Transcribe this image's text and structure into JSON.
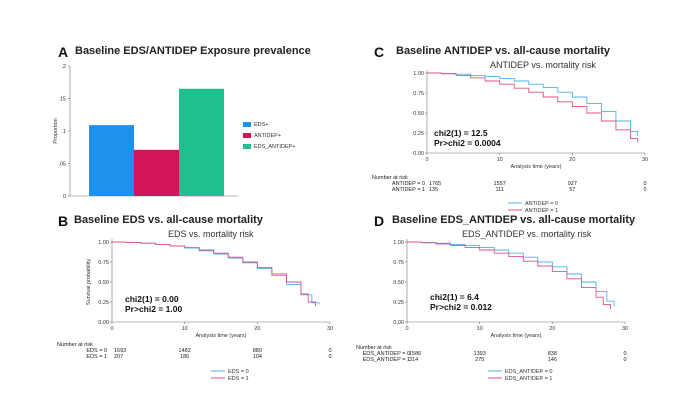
{
  "panels": {
    "A": {
      "letter": "A",
      "title": "Baseline EDS/ANTIDEP Exposure prevalence"
    },
    "B": {
      "letter": "B",
      "title": "Baseline EDS vs. all-cause mortality"
    },
    "C": {
      "letter": "C",
      "title": "Baseline ANTIDEP vs. all-cause mortality"
    },
    "D": {
      "letter": "D",
      "title": "Baseline EDS_ANTIDEP vs. all-cause mortality"
    }
  },
  "chart_data": [
    {
      "id": "A",
      "type": "bar",
      "title": "Baseline EDS/ANTIDEP Exposure prevalence",
      "ylabel": "Proportion",
      "ylim": [
        0,
        0.2
      ],
      "yticks": [
        "0",
        ".05",
        ".1",
        ".15",
        ".2"
      ],
      "categories": [
        "EDS+",
        "ANTIDEP+",
        "EDS_ANTIDEP+"
      ],
      "values": [
        0.109,
        0.071,
        0.165
      ],
      "colors": [
        "#1e90ee",
        "#d4145a",
        "#1fbf8f"
      ],
      "legend": "right"
    },
    {
      "id": "B",
      "type": "line",
      "subtitle": "EDS vs. mortality risk",
      "xlabel": "Analysis time (years)",
      "ylabel": "Survival probability",
      "xlim": [
        0,
        30
      ],
      "ylim": [
        0,
        1
      ],
      "xticks": [
        "0",
        "10",
        "20",
        "30"
      ],
      "yticks": [
        "0.00",
        "0.25",
        "0.50",
        "0.75",
        "1.00"
      ],
      "stat_lines": [
        "chi2(1) =   0.00",
        "Pr>chi2 = 1.00"
      ],
      "risk_title": "Number at risk",
      "risk_table": [
        {
          "label": "EDS = 0",
          "counts": [
            "1693",
            "1482",
            "880",
            "0"
          ]
        },
        {
          "label": "EDS = 1",
          "counts": [
            "207",
            "186",
            "104",
            "0"
          ]
        }
      ],
      "series": [
        {
          "name": "EDS = 0",
          "color": "#4db3f2",
          "x": [
            0,
            2,
            4,
            6,
            8,
            10,
            12,
            14,
            16,
            18,
            20,
            22,
            24,
            26,
            27.5,
            28.5
          ],
          "y": [
            1.0,
            0.995,
            0.985,
            0.97,
            0.95,
            0.925,
            0.89,
            0.85,
            0.8,
            0.74,
            0.67,
            0.58,
            0.47,
            0.34,
            0.24,
            0.22
          ]
        },
        {
          "name": "EDS = 1",
          "color": "#e0528a",
          "x": [
            0,
            2,
            4,
            6,
            8,
            10,
            12,
            14,
            16,
            18,
            20,
            22,
            24,
            26,
            27,
            28
          ],
          "y": [
            1.0,
            0.995,
            0.985,
            0.97,
            0.95,
            0.93,
            0.9,
            0.86,
            0.81,
            0.75,
            0.68,
            0.6,
            0.5,
            0.35,
            0.25,
            0.2
          ]
        }
      ],
      "legend": "bottom"
    },
    {
      "id": "C",
      "type": "line",
      "subtitle": "ANTIDEP vs. mortality risk",
      "xlabel": "Analysis time (years)",
      "xlim": [
        0,
        30
      ],
      "ylim": [
        0,
        1
      ],
      "xticks": [
        "0",
        "10",
        "20",
        "30"
      ],
      "yticks": [
        "0.00",
        "0.25",
        "0.50",
        "0.75",
        "1.00"
      ],
      "stat_lines": [
        "chi2(1) =   12.5",
        "Pr>chi2 = 0.0004"
      ],
      "risk_title": "Number at risk",
      "risk_table": [
        {
          "label": "ANTIDEP = 0",
          "counts": [
            "1765",
            "1557",
            "927",
            "0"
          ]
        },
        {
          "label": "ANTIDEP = 1",
          "counts": [
            "135",
            "111",
            "57",
            "0"
          ]
        }
      ],
      "series": [
        {
          "name": "ANTIDEP = 0",
          "color": "#4db3f2",
          "x": [
            0,
            2,
            4,
            6,
            8,
            10,
            12,
            14,
            16,
            18,
            20,
            22,
            24,
            26,
            28,
            29
          ],
          "y": [
            1.0,
            0.995,
            0.985,
            0.97,
            0.955,
            0.93,
            0.9,
            0.86,
            0.82,
            0.76,
            0.7,
            0.62,
            0.52,
            0.4,
            0.27,
            0.21
          ]
        },
        {
          "name": "ANTIDEP = 1",
          "color": "#e0528a",
          "x": [
            0,
            2,
            4,
            6,
            8,
            10,
            12,
            14,
            16,
            18,
            20,
            22,
            24,
            26,
            28,
            29
          ],
          "y": [
            1.0,
            0.99,
            0.97,
            0.94,
            0.9,
            0.86,
            0.81,
            0.76,
            0.7,
            0.64,
            0.58,
            0.5,
            0.4,
            0.29,
            0.18,
            0.13
          ]
        }
      ],
      "legend": "bottom"
    },
    {
      "id": "D",
      "type": "line",
      "subtitle": "EDS_ANTIDEP vs. mortality risk",
      "xlabel": "Analysis time (years)",
      "xlim": [
        0,
        30
      ],
      "ylim": [
        0,
        1
      ],
      "xticks": [
        "0",
        "10",
        "20",
        "30"
      ],
      "yticks": [
        "0.00",
        "0.25",
        "0.50",
        "0.75",
        "1.00"
      ],
      "stat_lines": [
        "chi2(1) =   6.4",
        "Pr>chi2 = 0.012"
      ],
      "risk_title": "Number at risk",
      "risk_table": [
        {
          "label": "EDS_ANTIDEP = 0",
          "counts": [
            "1586",
            "1393",
            "838",
            "0"
          ]
        },
        {
          "label": "EDS_ANTIDEP = 1",
          "counts": [
            "314",
            "275",
            "146",
            "0"
          ]
        }
      ],
      "series": [
        {
          "name": "EDS_ANTIDEP = 0",
          "color": "#4db3f2",
          "x": [
            0,
            2,
            4,
            6,
            8,
            10,
            12,
            14,
            16,
            18,
            20,
            22,
            24,
            26,
            27.5,
            28.5
          ],
          "y": [
            1.0,
            0.995,
            0.985,
            0.97,
            0.955,
            0.93,
            0.9,
            0.86,
            0.81,
            0.75,
            0.69,
            0.6,
            0.5,
            0.38,
            0.26,
            0.2
          ]
        },
        {
          "name": "EDS_ANTIDEP = 1",
          "color": "#e0528a",
          "x": [
            0,
            2,
            4,
            6,
            8,
            10,
            12,
            14,
            16,
            18,
            20,
            22,
            24,
            26,
            27,
            28
          ],
          "y": [
            1.0,
            0.99,
            0.975,
            0.955,
            0.93,
            0.9,
            0.86,
            0.82,
            0.76,
            0.7,
            0.63,
            0.54,
            0.43,
            0.31,
            0.22,
            0.16
          ]
        }
      ],
      "legend": "bottom"
    }
  ]
}
